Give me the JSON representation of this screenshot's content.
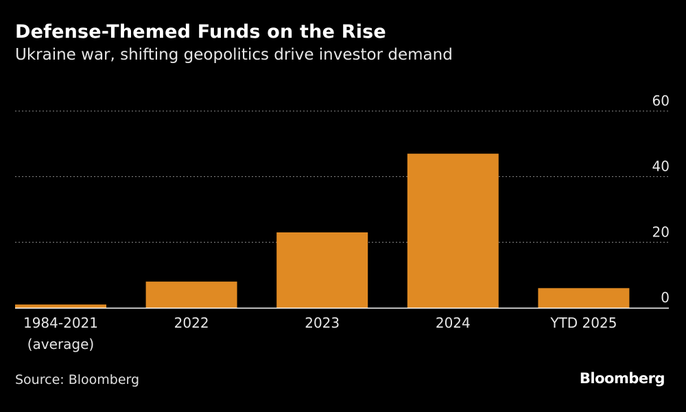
{
  "chart_data": {
    "type": "bar",
    "title": "Defense-Themed Funds on the Rise",
    "subtitle": "Ukraine war, shifting geopolitics drive investor demand",
    "categories": [
      [
        "1984-2021",
        "(average)"
      ],
      [
        "2022"
      ],
      [
        "2023"
      ],
      [
        "2024"
      ],
      [
        "YTD 2025"
      ]
    ],
    "values": [
      1,
      8,
      23,
      47,
      6
    ],
    "ylim": [
      0,
      60
    ],
    "yticks": [
      "60",
      "40",
      "20",
      "0"
    ],
    "ytick_values": [
      60,
      40,
      20,
      0
    ],
    "xlabel": "",
    "ylabel": "",
    "grid": true,
    "bar_color": "#e08a23",
    "axis_side": "right"
  },
  "footer": {
    "source": "Source: Bloomberg",
    "brand": "Bloomberg"
  }
}
